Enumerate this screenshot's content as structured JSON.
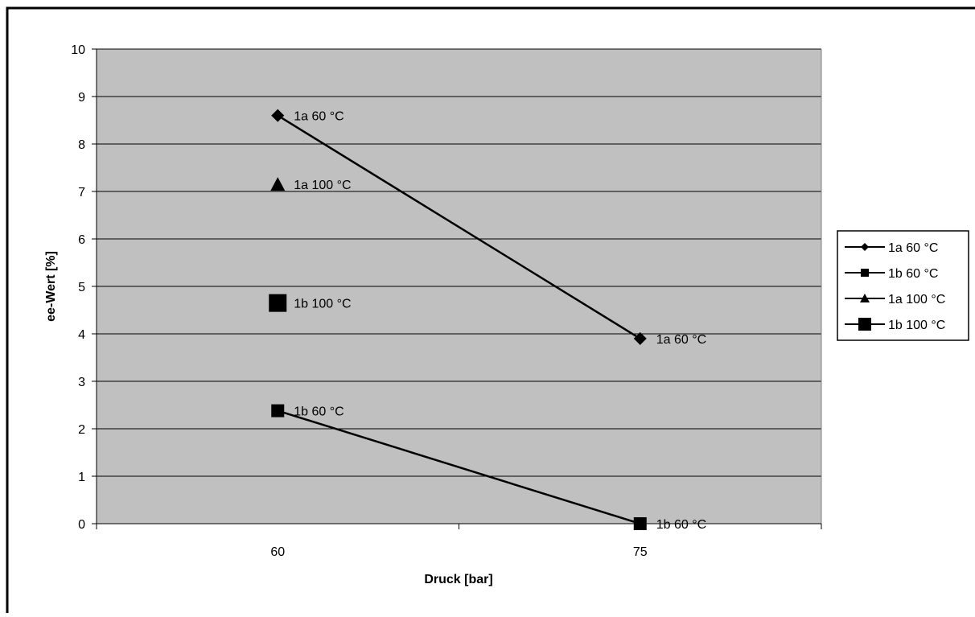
{
  "chart_data": {
    "type": "line",
    "title": "",
    "xlabel": "Druck [bar]",
    "ylabel": "ee-Wert [%]",
    "categories": [
      "60",
      "75"
    ],
    "ylim": [
      0,
      10
    ],
    "yticks": [
      0,
      1,
      2,
      3,
      4,
      5,
      6,
      7,
      8,
      9,
      10
    ],
    "grid": true,
    "plot_background": "#c0c0c0",
    "legend_position": "right",
    "series": [
      {
        "name": "1a 60 °C",
        "marker": "diamond",
        "values": [
          8.6,
          3.9
        ],
        "labels": [
          "1a 60 °C",
          "1a 60 °C"
        ],
        "color": "#000000"
      },
      {
        "name": "1b 60 °C",
        "marker": "square",
        "values": [
          2.38,
          0.0
        ],
        "labels": [
          "1b 60 °C",
          "1b 60 °C"
        ],
        "color": "#000000"
      },
      {
        "name": "1a 100 °C",
        "marker": "triangle",
        "values": [
          7.15,
          null
        ],
        "labels": [
          "1a 100 °C",
          ""
        ],
        "color": "#000000"
      },
      {
        "name": "1b 100 °C",
        "marker": "big-square",
        "values": [
          4.65,
          null
        ],
        "labels": [
          "1b 100 °C",
          ""
        ],
        "color": "#000000"
      }
    ]
  }
}
